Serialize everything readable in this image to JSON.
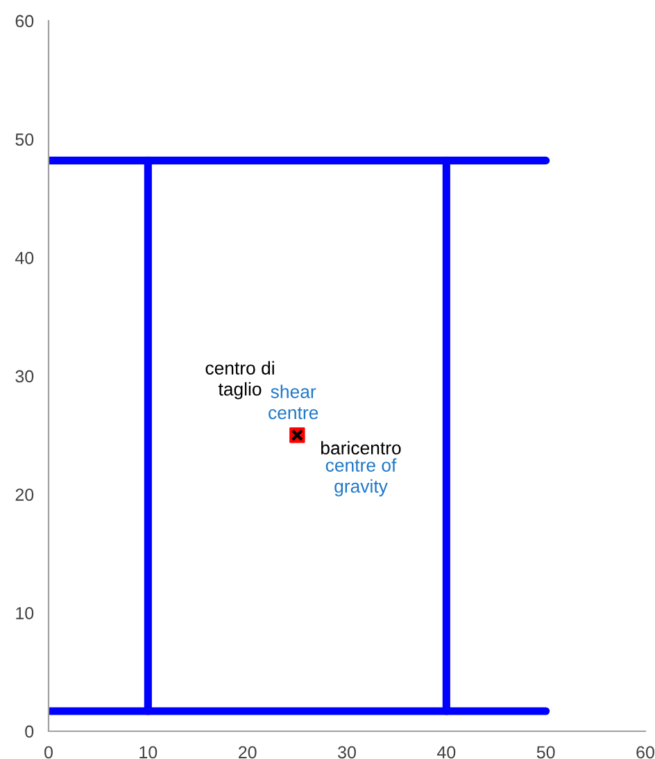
{
  "chart_data": {
    "type": "line",
    "xlim": [
      0,
      60
    ],
    "ylim": [
      0,
      60
    ],
    "xticks": [
      0,
      10,
      20,
      30,
      40,
      50,
      60
    ],
    "yticks": [
      0,
      10,
      20,
      30,
      40,
      50,
      60
    ],
    "grid": false,
    "legend": false,
    "marker": "none",
    "series": [
      {
        "color": "#0000ff",
        "x": [
          0,
          50
        ],
        "values": [
          48.2,
          48.2
        ]
      },
      {
        "color": "#0000ff",
        "x": [
          0,
          50
        ],
        "values": [
          1.7,
          1.7
        ]
      },
      {
        "color": "#0000ff",
        "x": [
          10,
          10
        ],
        "values": [
          1.7,
          48.2
        ]
      },
      {
        "color": "#0000ff",
        "x": [
          40,
          40
        ],
        "values": [
          1.7,
          48.2
        ]
      },
      {
        "type": "scatter",
        "marker": "square",
        "color": "#ff0000",
        "x": [
          25
        ],
        "values": [
          25
        ]
      },
      {
        "type": "scatter",
        "marker": "cross",
        "color": "#000000",
        "x": [
          25
        ],
        "values": [
          25
        ]
      }
    ],
    "annotations": [
      "centro di\ntaglio",
      "shear\ncentre",
      "baricentro",
      "centre of\ngravity"
    ]
  }
}
